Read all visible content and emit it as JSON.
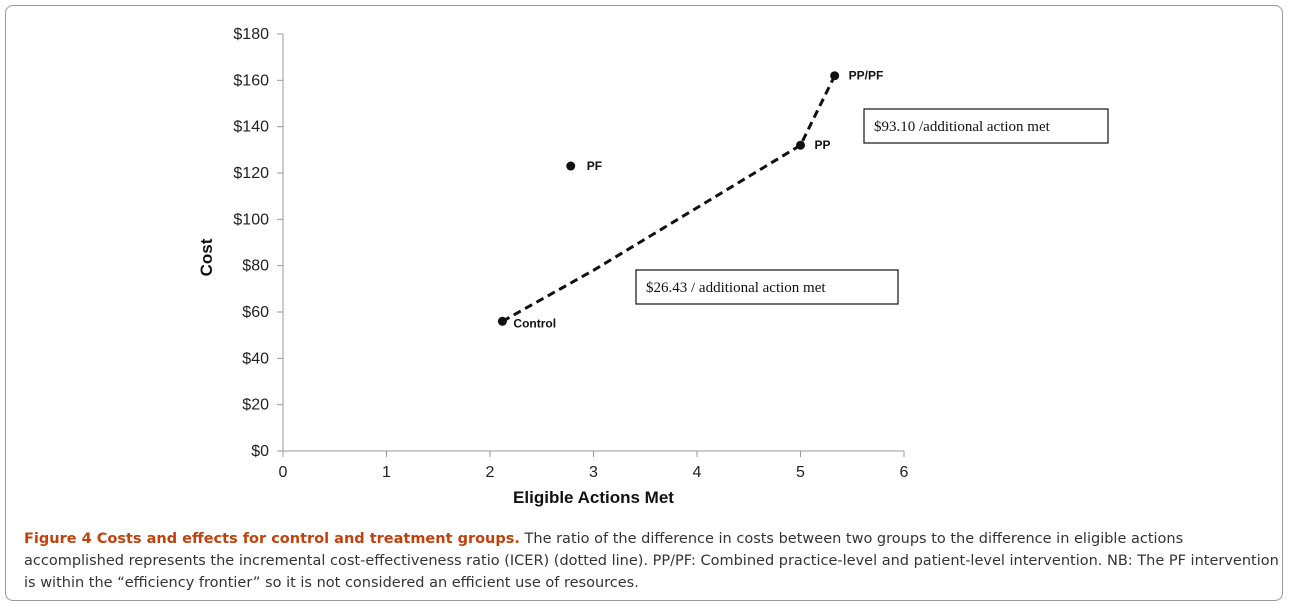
{
  "chart_data": {
    "type": "scatter",
    "title": "",
    "xlabel": "Eligible Actions Met",
    "ylabel": "Cost",
    "xlim": [
      0,
      6
    ],
    "ylim": [
      0,
      180
    ],
    "x_ticks": [
      "0",
      "1",
      "2",
      "3",
      "4",
      "5",
      "6"
    ],
    "y_ticks": [
      "$0",
      "$20",
      "$40",
      "$60",
      "$80",
      "$100",
      "$120",
      "$140",
      "$160",
      "$180"
    ],
    "grid": false,
    "points": [
      {
        "label": "Control",
        "x": 2.12,
        "y": 56
      },
      {
        "label": "PF",
        "x": 2.78,
        "y": 123
      },
      {
        "label": "PP",
        "x": 5.0,
        "y": 132
      },
      {
        "label": "PP/PF",
        "x": 5.33,
        "y": 162
      }
    ],
    "frontier_line": {
      "style": "dashed",
      "points": [
        {
          "x": 2.12,
          "y": 56
        },
        {
          "x": 3.0,
          "y": 78
        },
        {
          "x": 5.0,
          "y": 132
        },
        {
          "x": 5.33,
          "y": 162
        }
      ]
    },
    "annotations": [
      {
        "text": "$93.10 /additional action met"
      },
      {
        "text": "$26.43 / additional action met"
      }
    ]
  },
  "caption": {
    "figure_title": "Figure 4 Costs and effects for control and treatment groups.",
    "text": " The ratio of the difference in costs between two groups to the difference in eligible actions accomplished represents the incremental cost-effectiveness ratio (ICER) (dotted line). PP/PF: Combined practice-level and patient-level intervention. NB: The PF intervention is within the “efficiency frontier” so it is not considered an efficient use of resources."
  }
}
